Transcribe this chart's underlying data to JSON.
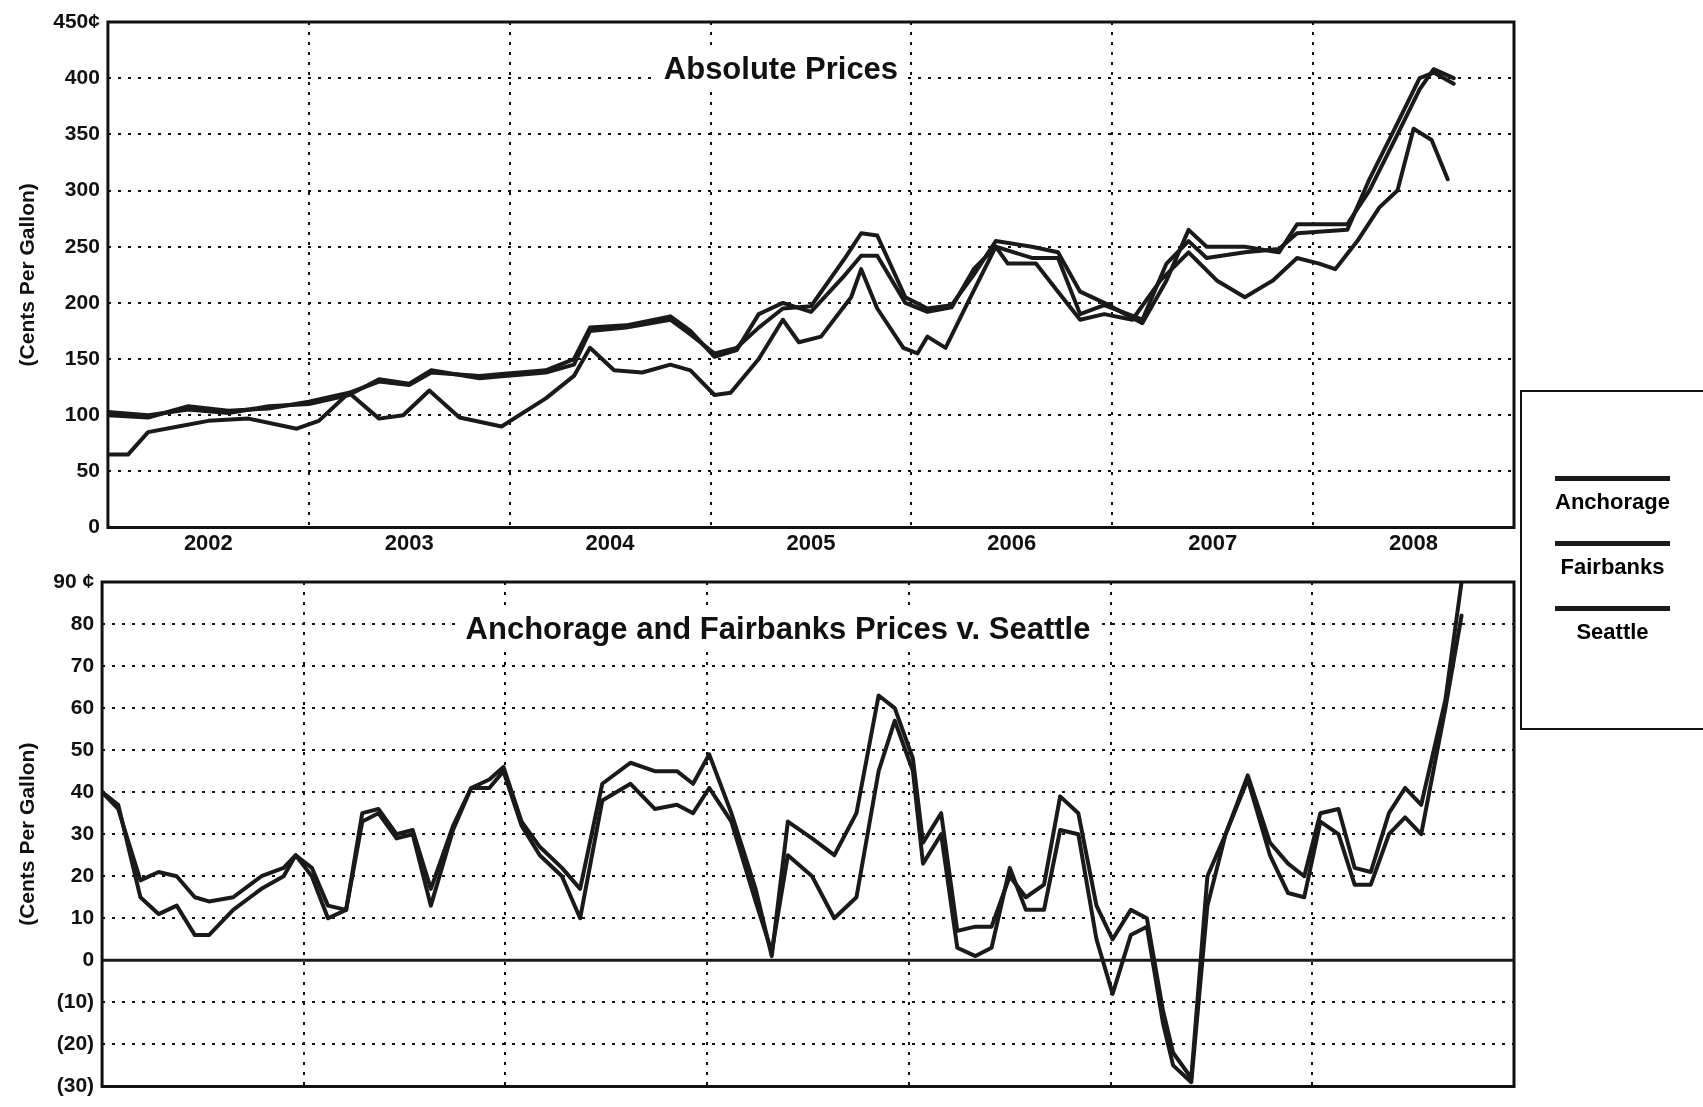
{
  "chart_data": [
    {
      "type": "line",
      "title": "Absolute Prices",
      "ylabel": "(Cents Per Gallon)",
      "xlim": [
        2002,
        2009
      ],
      "xticks": [
        {
          "value": 2002.5,
          "label": "2002"
        },
        {
          "value": 2003,
          "label": null
        },
        {
          "value": 2003.5,
          "label": "2003"
        },
        {
          "value": 2004,
          "label": null
        },
        {
          "value": 2004.5,
          "label": "2004"
        },
        {
          "value": 2005,
          "label": null
        },
        {
          "value": 2005.5,
          "label": "2005"
        },
        {
          "value": 2006,
          "label": null
        },
        {
          "value": 2006.5,
          "label": "2006"
        },
        {
          "value": 2007,
          "label": null
        },
        {
          "value": 2007.5,
          "label": "2007"
        },
        {
          "value": 2008,
          "label": null
        },
        {
          "value": 2008.5,
          "label": "2008"
        }
      ],
      "ylim": [
        0,
        450
      ],
      "yticks": [
        0,
        50,
        100,
        150,
        200,
        250,
        300,
        350,
        400,
        {
          "value": 450,
          "label": "450¢"
        }
      ],
      "grid": true,
      "legend": "right",
      "marker": "none",
      "series": [
        {
          "name": "Anchorage",
          "color": "#1a1a1a",
          "x": [
            2002,
            2002.2,
            2002.4,
            2002.6,
            2002.8,
            2003.0,
            2003.2,
            2003.35,
            2003.5,
            2003.61,
            2003.85,
            2004.18,
            2004.32,
            2004.4,
            2004.58,
            2004.8,
            2004.9,
            2005.02,
            2005.13,
            2005.24,
            2005.36,
            2005.5,
            2005.67,
            2005.75,
            2005.83,
            2005.97,
            2006.08,
            2006.2,
            2006.31,
            2006.42,
            2006.6,
            2006.73,
            2006.84,
            2006.96,
            2007.15,
            2007.27,
            2007.38,
            2007.47,
            2007.66,
            2007.83,
            2007.92,
            2008.17,
            2008.28,
            2008.42,
            2008.53,
            2008.6,
            2008.7
          ],
          "values": [
            103,
            100,
            105,
            102,
            108,
            110,
            118,
            132,
            128,
            140,
            133,
            138,
            145,
            175,
            178,
            185,
            172,
            155,
            160,
            178,
            195,
            197,
            240,
            262,
            260,
            205,
            195,
            198,
            225,
            255,
            250,
            245,
            210,
            200,
            182,
            220,
            265,
            250,
            250,
            245,
            270,
            270,
            300,
            350,
            390,
            408,
            400
          ]
        },
        {
          "name": "Fairbanks",
          "color": "#1a1a1a",
          "x": [
            2002,
            2002.2,
            2002.4,
            2002.6,
            2002.8,
            2003.0,
            2003.2,
            2003.35,
            2003.5,
            2003.61,
            2003.85,
            2004.18,
            2004.32,
            2004.4,
            2004.58,
            2004.8,
            2004.9,
            2005.02,
            2005.13,
            2005.24,
            2005.36,
            2005.5,
            2005.67,
            2005.75,
            2005.83,
            2005.97,
            2006.08,
            2006.2,
            2006.31,
            2006.42,
            2006.6,
            2006.73,
            2006.84,
            2006.96,
            2007.15,
            2007.27,
            2007.38,
            2007.47,
            2007.66,
            2007.83,
            2007.92,
            2008.17,
            2008.28,
            2008.42,
            2008.53,
            2008.6,
            2008.7
          ],
          "values": [
            100,
            98,
            108,
            104,
            106,
            112,
            120,
            130,
            127,
            138,
            135,
            140,
            150,
            178,
            180,
            188,
            175,
            152,
            158,
            190,
            200,
            192,
            225,
            242,
            242,
            200,
            192,
            196,
            230,
            250,
            240,
            240,
            190,
            198,
            185,
            235,
            255,
            240,
            245,
            248,
            262,
            265,
            310,
            360,
            400,
            405,
            395
          ]
        },
        {
          "name": "Seattle",
          "color": "#1a1a1a",
          "x": [
            2002,
            2002.1,
            2002.2,
            2002.35,
            2002.5,
            2002.7,
            2002.94,
            2003.05,
            2003.2,
            2003.35,
            2003.47,
            2003.6,
            2003.75,
            2003.96,
            2004.18,
            2004.32,
            2004.4,
            2004.52,
            2004.66,
            2004.8,
            2004.9,
            2005.02,
            2005.1,
            2005.24,
            2005.36,
            2005.44,
            2005.55,
            2005.7,
            2005.75,
            2005.83,
            2005.96,
            2006.03,
            2006.08,
            2006.17,
            2006.28,
            2006.42,
            2006.48,
            2006.62,
            2006.73,
            2006.84,
            2006.96,
            2007.1,
            2007.24,
            2007.38,
            2007.52,
            2007.66,
            2007.8,
            2007.92,
            2008.03,
            2008.11,
            2008.22,
            2008.33,
            2008.42,
            2008.5,
            2008.59,
            2008.67
          ],
          "values": [
            65,
            65,
            85,
            90,
            95,
            97,
            88,
            95,
            120,
            97,
            100,
            122,
            98,
            90,
            115,
            135,
            160,
            140,
            138,
            145,
            140,
            118,
            120,
            150,
            185,
            165,
            170,
            205,
            230,
            195,
            160,
            155,
            170,
            160,
            200,
            250,
            235,
            235,
            210,
            185,
            190,
            185,
            220,
            245,
            220,
            205,
            220,
            240,
            235,
            230,
            255,
            285,
            300,
            355,
            345,
            310
          ]
        }
      ]
    },
    {
      "type": "line",
      "title": "Anchorage and Fairbanks Prices v. Seattle",
      "ylabel": "(Cents Per Gallon)",
      "xlim": [
        2002,
        2009
      ],
      "xticks": [
        2003,
        2004,
        2005,
        2006,
        2007,
        2008
      ],
      "tick_labels": "y",
      "ylim": [
        -30,
        90
      ],
      "yticks": [
        {
          "value": -30,
          "label": "(30)"
        },
        {
          "value": -20,
          "label": "(20)"
        },
        {
          "value": -10,
          "label": "(10)"
        },
        0,
        10,
        20,
        30,
        40,
        50,
        60,
        70,
        80,
        {
          "value": 90,
          "label": "90 ¢"
        }
      ],
      "grid": true,
      "marker": "none",
      "ref_lines": [
        {
          "axis": "y",
          "value": 0,
          "color": "#1a1a1a",
          "line_style": "solid"
        }
      ],
      "series": [
        {
          "color": "#1a1a1a",
          "x": [
            2002,
            2002.08,
            2002.19,
            2002.28,
            2002.37,
            2002.46,
            2002.53,
            2002.65,
            2002.79,
            2002.9,
            2002.96,
            2003.04,
            2003.12,
            2003.21,
            2003.29,
            2003.37,
            2003.46,
            2003.54,
            2003.63,
            2003.74,
            2003.83,
            2003.92,
            2003.99,
            2004.08,
            2004.17,
            2004.28,
            2004.37,
            2004.48,
            2004.62,
            2004.74,
            2004.85,
            2004.93,
            2005.01,
            2005.12,
            2005.24,
            2005.32,
            2005.4,
            2005.52,
            2005.63,
            2005.74,
            2005.85,
            2005.93,
            2006.02,
            2006.07,
            2006.16,
            2006.24,
            2006.33,
            2006.41,
            2006.5,
            2006.58,
            2006.67,
            2006.75,
            2006.84,
            2006.93,
            2007.01,
            2007.1,
            2007.18,
            2007.26,
            2007.31,
            2007.4,
            2007.48,
            2007.57,
            2007.68,
            2007.79,
            2007.88,
            2007.96,
            2008.04,
            2008.13,
            2008.21,
            2008.29,
            2008.38,
            2008.46,
            2008.54,
            2008.66,
            2008.74
          ],
          "values": [
            40,
            37,
            15,
            11,
            13,
            6,
            6,
            12,
            17,
            20,
            25,
            20,
            10,
            12,
            33,
            35,
            29,
            30,
            13,
            31,
            41,
            41,
            45,
            32,
            25,
            20,
            10,
            38,
            42,
            36,
            37,
            35,
            41,
            33,
            14,
            2,
            25,
            20,
            10,
            15,
            45,
            57,
            45,
            23,
            30,
            3,
            1,
            3,
            22,
            12,
            12,
            31,
            30,
            5,
            -8,
            6,
            8,
            -15,
            -25,
            -29,
            13,
            30,
            43,
            25,
            16,
            15,
            33,
            30,
            18,
            18,
            30,
            34,
            30,
            60,
            82
          ]
        },
        {
          "color": "#1a1a1a",
          "x": [
            2002,
            2002.08,
            2002.19,
            2002.28,
            2002.37,
            2002.46,
            2002.53,
            2002.65,
            2002.79,
            2002.9,
            2002.96,
            2003.04,
            2003.12,
            2003.21,
            2003.29,
            2003.37,
            2003.46,
            2003.54,
            2003.63,
            2003.74,
            2003.83,
            2003.92,
            2003.99,
            2004.08,
            2004.17,
            2004.28,
            2004.37,
            2004.48,
            2004.62,
            2004.74,
            2004.85,
            2004.93,
            2005.01,
            2005.12,
            2005.24,
            2005.32,
            2005.4,
            2005.52,
            2005.63,
            2005.74,
            2005.85,
            2005.93,
            2006.02,
            2006.07,
            2006.16,
            2006.24,
            2006.33,
            2006.41,
            2006.5,
            2006.58,
            2006.67,
            2006.75,
            2006.84,
            2006.93,
            2007.01,
            2007.1,
            2007.18,
            2007.26,
            2007.31,
            2007.4,
            2007.48,
            2007.57,
            2007.68,
            2007.79,
            2007.88,
            2007.96,
            2008.04,
            2008.13,
            2008.21,
            2008.29,
            2008.38,
            2008.46,
            2008.54,
            2008.66,
            2008.74
          ],
          "values": [
            40,
            36,
            19,
            21,
            20,
            15,
            14,
            15,
            20,
            22,
            25,
            22,
            13,
            12,
            35,
            36,
            30,
            31,
            17,
            32,
            41,
            43,
            46,
            33,
            27,
            22,
            17,
            42,
            47,
            45,
            45,
            42,
            49,
            35,
            17,
            1,
            33,
            29,
            25,
            35,
            63,
            60,
            48,
            28,
            35,
            7,
            8,
            8,
            20,
            15,
            18,
            39,
            35,
            13,
            5,
            12,
            10,
            -12,
            -22,
            -28,
            20,
            30,
            44,
            28,
            23,
            20,
            35,
            36,
            22,
            21,
            35,
            41,
            37,
            62,
            90
          ]
        }
      ]
    }
  ]
}
